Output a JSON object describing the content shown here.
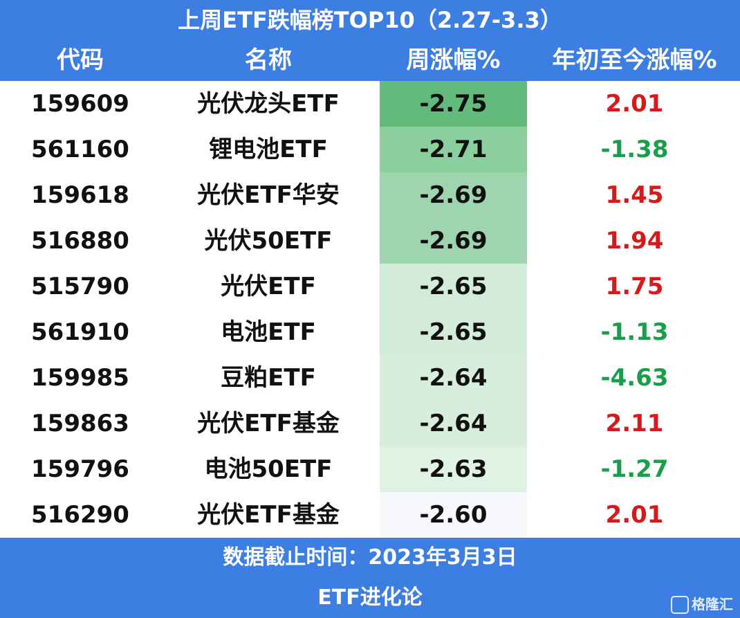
{
  "header": {
    "title": "上周ETF跌幅榜TOP10（2.27-3.3）"
  },
  "table": {
    "columns": [
      "代码",
      "名称",
      "周涨幅%",
      "年初至今涨幅%"
    ],
    "rows": [
      [
        "159609",
        "光伏龙头ETF",
        "-2.75",
        "2.01"
      ],
      [
        "561160",
        "锂电池ETF",
        "-2.71",
        "-1.38"
      ],
      [
        "159618",
        "光伏ETF华安",
        "-2.69",
        "1.45"
      ],
      [
        "516880",
        "光伏50ETF",
        "-2.69",
        "1.94"
      ],
      [
        "515790",
        "光伏ETF",
        "-2.65",
        "1.75"
      ],
      [
        "561910",
        "电池ETF",
        "-2.65",
        "-1.13"
      ],
      [
        "159985",
        "豆粕ETF",
        "-2.64",
        "-4.63"
      ],
      [
        "159863",
        "光伏ETF基金",
        "-2.64",
        "2.11"
      ],
      [
        "159796",
        "电池50ETF",
        "-2.63",
        "-1.27"
      ],
      [
        "516290",
        "光伏ETF基金",
        "-2.60",
        "2.01"
      ]
    ],
    "week_colors": [
      "#63bb7b",
      "#8ccf9e",
      "#9fd5ae",
      "#9fd5ae",
      "#d2ecd9",
      "#d2ecd9",
      "#d8eedd",
      "#d8eedd",
      "#e0f2e4",
      "#f8f8fc"
    ],
    "up_color": "#d7191c",
    "down_color": "#1a9e4b"
  },
  "footer": {
    "date": "数据截止时间：2023年3月3日",
    "source": "ETF进化论",
    "watermark": "格隆汇"
  }
}
